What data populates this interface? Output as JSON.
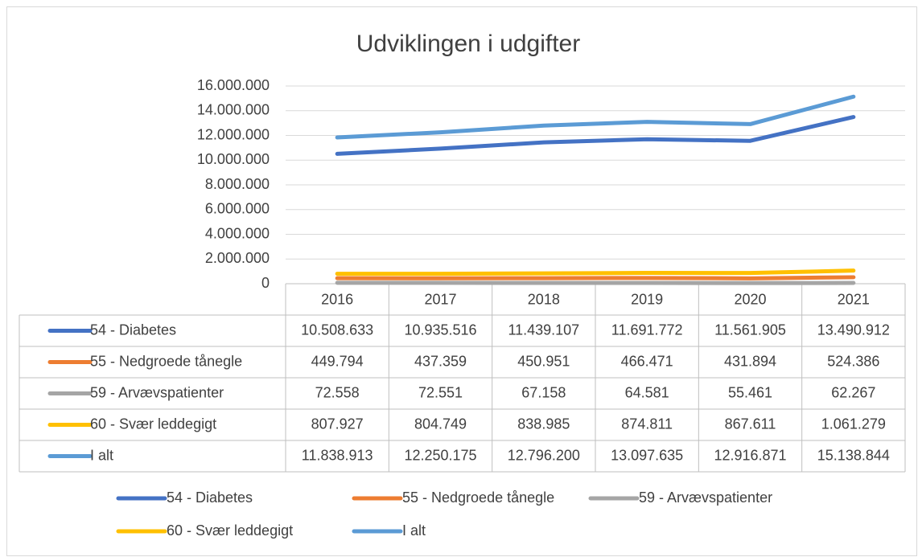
{
  "chart_data": {
    "type": "line",
    "title": "Udviklingen i udgifter",
    "categories": [
      "2016",
      "2017",
      "2018",
      "2019",
      "2020",
      "2021"
    ],
    "series": [
      {
        "name": "54 - Diabetes",
        "color": "#4472c4",
        "values": [
          10508633,
          10935516,
          11439107,
          11691772,
          11561905,
          13490912
        ],
        "value_labels": [
          "10.508.633",
          "10.935.516",
          "11.439.107",
          "11.691.772",
          "11.561.905",
          "13.490.912"
        ]
      },
      {
        "name": "55 - Nedgroede tånegle",
        "color": "#ed7d31",
        "values": [
          449794,
          437359,
          450951,
          466471,
          431894,
          524386
        ],
        "value_labels": [
          "449.794",
          "437.359",
          "450.951",
          "466.471",
          "431.894",
          "524.386"
        ]
      },
      {
        "name": "59 - Arvævspatienter",
        "color": "#a5a5a5",
        "values": [
          72558,
          72551,
          67158,
          64581,
          55461,
          62267
        ],
        "value_labels": [
          "72.558",
          "72.551",
          "67.158",
          "64.581",
          "55.461",
          "62.267"
        ]
      },
      {
        "name": "60 - Svær leddegigt",
        "color": "#ffc000",
        "values": [
          807927,
          804749,
          838985,
          874811,
          867611,
          1061279
        ],
        "value_labels": [
          "807.927",
          "804.749",
          "838.985",
          "874.811",
          "867.611",
          "1.061.279"
        ]
      },
      {
        "name": "I alt",
        "color": "#5b9bd5",
        "values": [
          11838913,
          12250175,
          12796200,
          13097635,
          12916871,
          15138844
        ],
        "value_labels": [
          "11.838.913",
          "12.250.175",
          "12.796.200",
          "13.097.635",
          "12.916.871",
          "15.138.844"
        ]
      }
    ],
    "ylim": [
      0,
      16000000
    ],
    "yticks": [
      0,
      {
        "value": 2000000,
        "label": "2.000.000"
      },
      {
        "value": 4000000,
        "label": "4.000.000"
      },
      {
        "value": 6000000,
        "label": "6.000.000"
      },
      {
        "value": 8000000,
        "label": "8.000.000"
      },
      {
        "value": 10000000,
        "label": "10.000.000"
      },
      {
        "value": 12000000,
        "label": "12.000.000"
      },
      {
        "value": 14000000,
        "label": "14.000.000"
      },
      {
        "value": 16000000,
        "label": "16.000.000"
      }
    ],
    "grid": true,
    "legend": "bottom"
  }
}
